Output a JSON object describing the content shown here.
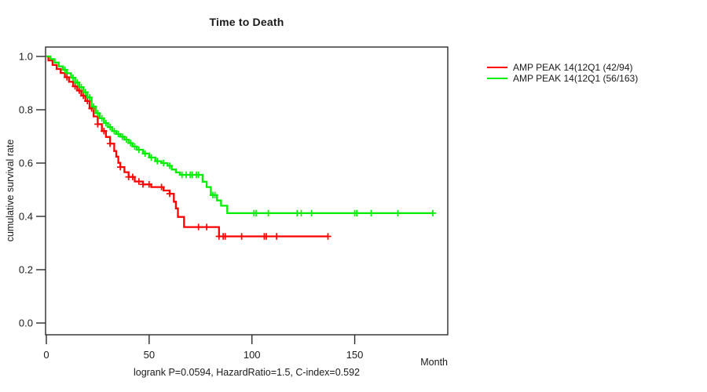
{
  "chart_data": {
    "type": "line",
    "subtype": "kaplan-meier-step",
    "title": "Time to Death",
    "xlabel": "Month",
    "ylabel": "cumulative survival rate",
    "footer": "logrank P=0.0594, HazardRatio=1.5, C-index=0.592",
    "xlim": [
      0,
      195
    ],
    "ylim": [
      0.0,
      1.0
    ],
    "x_ticks": [
      0,
      50,
      100,
      150
    ],
    "y_ticks": [
      0.0,
      0.2,
      0.4,
      0.6,
      0.8,
      1.0
    ],
    "grid": false,
    "legend_position": "right-outside",
    "axis_color": "#2b2b2b",
    "series": [
      {
        "name": "AMP PEAK 14(12Q1 (42/94)",
        "color": "#ff0000",
        "points": [
          [
            0,
            1.0
          ],
          [
            1,
            0.985
          ],
          [
            3,
            0.968
          ],
          [
            5,
            0.953
          ],
          [
            7,
            0.938
          ],
          [
            9,
            0.922
          ],
          [
            11,
            0.905
          ],
          [
            13,
            0.888
          ],
          [
            15,
            0.872
          ],
          [
            17,
            0.853
          ],
          [
            19,
            0.833
          ],
          [
            21,
            0.805
          ],
          [
            23,
            0.775
          ],
          [
            25,
            0.746
          ],
          [
            27,
            0.72
          ],
          [
            29,
            0.698
          ],
          [
            31,
            0.673
          ],
          [
            33,
            0.645
          ],
          [
            34,
            0.624
          ],
          [
            35,
            0.601
          ],
          [
            36,
            0.585
          ],
          [
            38,
            0.566
          ],
          [
            40,
            0.548
          ],
          [
            43,
            0.531
          ],
          [
            47,
            0.52
          ],
          [
            51,
            0.51
          ],
          [
            57,
            0.497
          ],
          [
            60,
            0.485
          ],
          [
            62,
            0.455
          ],
          [
            63,
            0.43
          ],
          [
            64,
            0.398
          ],
          [
            67,
            0.36
          ],
          [
            84,
            0.325
          ],
          [
            137,
            0.325
          ]
        ],
        "censor_months": [
          10,
          14,
          16,
          18,
          20,
          22,
          25,
          28,
          31,
          36,
          40,
          42,
          45,
          47,
          50,
          56,
          60,
          74,
          78,
          84,
          86,
          87,
          95,
          106,
          107,
          112,
          137
        ]
      },
      {
        "name": "AMP PEAK 14(12Q1 (56/163)",
        "color": "#00ee00",
        "points": [
          [
            0,
            1.0
          ],
          [
            2,
            0.99
          ],
          [
            4,
            0.977
          ],
          [
            6,
            0.963
          ],
          [
            8,
            0.95
          ],
          [
            10,
            0.937
          ],
          [
            12,
            0.92
          ],
          [
            14,
            0.902
          ],
          [
            16,
            0.885
          ],
          [
            18,
            0.866
          ],
          [
            20,
            0.846
          ],
          [
            22,
            0.812
          ],
          [
            24,
            0.787
          ],
          [
            26,
            0.768
          ],
          [
            28,
            0.75
          ],
          [
            30,
            0.735
          ],
          [
            32,
            0.72
          ],
          [
            34,
            0.709
          ],
          [
            36,
            0.699
          ],
          [
            38,
            0.688
          ],
          [
            40,
            0.675
          ],
          [
            42,
            0.662
          ],
          [
            44,
            0.65
          ],
          [
            47,
            0.636
          ],
          [
            50,
            0.621
          ],
          [
            53,
            0.607
          ],
          [
            56,
            0.6
          ],
          [
            59,
            0.59
          ],
          [
            61,
            0.576
          ],
          [
            63,
            0.565
          ],
          [
            65,
            0.556
          ],
          [
            76,
            0.53
          ],
          [
            78,
            0.51
          ],
          [
            80,
            0.48
          ],
          [
            83,
            0.46
          ],
          [
            85,
            0.44
          ],
          [
            88,
            0.412
          ],
          [
            188,
            0.412
          ]
        ],
        "censor_months": [
          9,
          13,
          15,
          17,
          19,
          21,
          23,
          25,
          27,
          29,
          31,
          33,
          35,
          37,
          39,
          41,
          43,
          45,
          48,
          51,
          54,
          57,
          60,
          66,
          68,
          70,
          71,
          73,
          74,
          81,
          82,
          101,
          102,
          108,
          122,
          124,
          129,
          150,
          151,
          158,
          171,
          188
        ]
      }
    ]
  }
}
